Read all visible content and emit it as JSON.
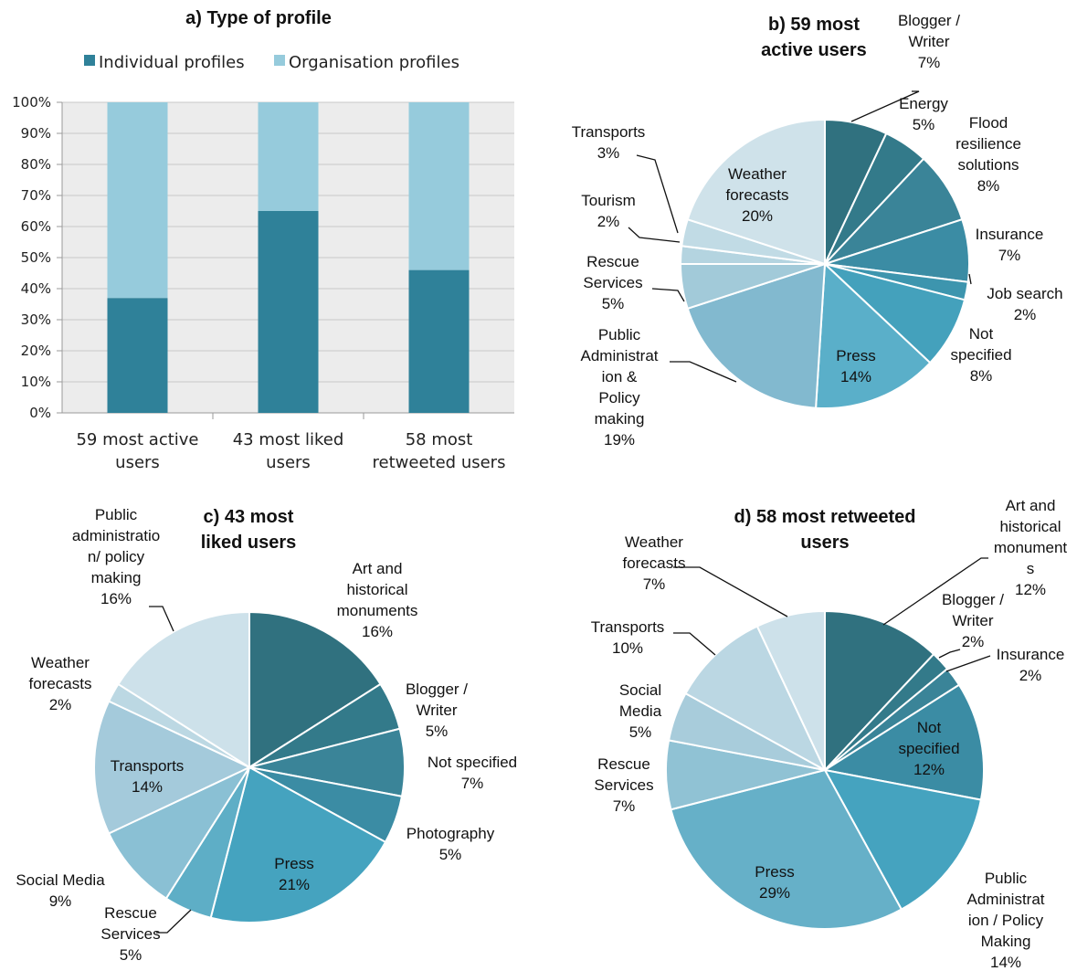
{
  "chart_data": [
    {
      "type": "bar",
      "stacked": true,
      "percent_stacked": true,
      "title": "a) Type of profile",
      "categories": [
        [
          "59 most active",
          "users"
        ],
        [
          "43 most liked",
          "users"
        ],
        [
          "58 most",
          "retweeted users"
        ]
      ],
      "series": [
        {
          "name": "Individual profiles",
          "color": "#2f8199",
          "values": [
            37,
            65,
            46
          ]
        },
        {
          "name": "Organisation profiles",
          "color": "#96cbdc",
          "values": [
            63,
            35,
            54
          ]
        }
      ],
      "ylim": [
        0,
        100
      ],
      "yticks": [
        "0%",
        "10%",
        "20%",
        "30%",
        "40%",
        "50%",
        "60%",
        "70%",
        "80%",
        "90%",
        "100%"
      ],
      "grid": true,
      "legend": "top"
    },
    {
      "type": "pie",
      "title": [
        "b) 59 most",
        "active users"
      ],
      "slices": [
        {
          "name": "Blogger / Writer",
          "value": 7,
          "label": [
            "Blogger /",
            "Writer",
            "7%"
          ],
          "color": "#30717f"
        },
        {
          "name": "Energy",
          "value": 5,
          "label": [
            "Energy",
            "5%"
          ],
          "color": "#337a8a"
        },
        {
          "name": "Flood resilience solutions",
          "value": 8,
          "label": [
            "Flood",
            "resilience",
            "solutions",
            "8%"
          ],
          "color": "#3a8498"
        },
        {
          "name": "Insurance",
          "value": 7,
          "label": [
            "Insurance",
            "7%"
          ],
          "color": "#3b8ca4"
        },
        {
          "name": "Job search",
          "value": 2,
          "label": [
            "Job search",
            "2%"
          ],
          "color": "#3d95ae"
        },
        {
          "name": "Not specified",
          "value": 8,
          "label": [
            "Not",
            "specified",
            "8%"
          ],
          "color": "#44a1bc"
        },
        {
          "name": "Press",
          "value": 14,
          "label": [
            "Press",
            "14%"
          ],
          "color": "#5aafc9"
        },
        {
          "name": "Public Administration & Policy making",
          "value": 19,
          "label": [
            "Public",
            "Administrat",
            "ion &",
            "Policy",
            "making",
            "19%"
          ],
          "color": "#82b9cf"
        },
        {
          "name": "Rescue Services",
          "value": 5,
          "label": [
            "Rescue",
            "Services",
            "5%"
          ],
          "color": "#a2cad9"
        },
        {
          "name": "Tourism",
          "value": 2,
          "label": [
            "Tourism",
            "2%"
          ],
          "color": "#b4d4e0"
        },
        {
          "name": "Transports",
          "value": 3,
          "label": [
            "Transports",
            "3%"
          ],
          "color": "#c1dbe5"
        },
        {
          "name": "Weather forecasts",
          "value": 20,
          "label": [
            "Weather",
            "forecasts",
            "20%"
          ],
          "color": "#cfe2ea"
        }
      ]
    },
    {
      "type": "pie",
      "title": [
        "c) 43 most",
        "liked users"
      ],
      "slices": [
        {
          "name": "Art and historical monuments",
          "value": 16,
          "label": [
            "Art and",
            "historical",
            "monuments",
            "16%"
          ],
          "color": "#30717f"
        },
        {
          "name": "Blogger / Writer",
          "value": 5,
          "label": [
            "Blogger /",
            "Writer",
            "5%"
          ],
          "color": "#337a8a"
        },
        {
          "name": "Not specified",
          "value": 7,
          "label": [
            "Not specified",
            "7%"
          ],
          "color": "#3a8498"
        },
        {
          "name": "Photography",
          "value": 5,
          "label": [
            "Photography",
            "5%"
          ],
          "color": "#3b8ca4"
        },
        {
          "name": "Press",
          "value": 21,
          "label": [
            "Press",
            "21%"
          ],
          "color": "#45a3bf"
        },
        {
          "name": "Rescue Services",
          "value": 5,
          "label": [
            "Rescue",
            "Services",
            "5%"
          ],
          "color": "#5eaec6"
        },
        {
          "name": "Social Media",
          "value": 9,
          "label": [
            "Social Media",
            "9%"
          ],
          "color": "#8ac0d4"
        },
        {
          "name": "Transports",
          "value": 14,
          "label": [
            "Transports",
            "14%"
          ],
          "color": "#a4cadb"
        },
        {
          "name": "Weather forecasts",
          "value": 2,
          "label": [
            "Weather",
            "forecasts",
            "2%"
          ],
          "color": "#bcd8e3"
        },
        {
          "name": "Public administration/ policy making",
          "value": 16,
          "label": [
            "Public",
            "administratio",
            "n/ policy",
            "making",
            "16%"
          ],
          "color": "#cde1ea"
        }
      ]
    },
    {
      "type": "pie",
      "title": [
        "d) 58 most retweeted",
        "users"
      ],
      "slices": [
        {
          "name": "Art and historical monuments",
          "value": 12,
          "label": [
            "Art and",
            "historical",
            "monument",
            "s",
            "12%"
          ],
          "color": "#30717f"
        },
        {
          "name": "Blogger / Writer",
          "value": 2,
          "label": [
            "Blogger /",
            "Writer",
            "2%"
          ],
          "color": "#337a8a"
        },
        {
          "name": "Insurance",
          "value": 2,
          "label": [
            "Insurance",
            "2%"
          ],
          "color": "#3a8498"
        },
        {
          "name": "Not specified",
          "value": 12,
          "label": [
            "Not",
            "specified",
            "12%"
          ],
          "color": "#3b8ca4"
        },
        {
          "name": "Public Administration / Policy Making",
          "value": 14,
          "label": [
            "Public",
            "Administrat",
            "ion / Policy",
            "Making",
            "14%"
          ],
          "color": "#45a3bf"
        },
        {
          "name": "Press",
          "value": 29,
          "label": [
            "Press",
            "29%"
          ],
          "color": "#66b0c8"
        },
        {
          "name": "Rescue Services",
          "value": 7,
          "label": [
            "Rescue",
            "Services",
            "7%"
          ],
          "color": "#90c2d4"
        },
        {
          "name": "Social Media",
          "value": 5,
          "label": [
            "Social",
            "Media",
            "5%"
          ],
          "color": "#a8ccdb"
        },
        {
          "name": "Transports",
          "value": 10,
          "label": [
            "Transports",
            "10%"
          ],
          "color": "#bbd7e3"
        },
        {
          "name": "Weather forecasts",
          "value": 7,
          "label": [
            "Weather",
            "forecasts",
            "7%"
          ],
          "color": "#cde1ea"
        }
      ]
    }
  ]
}
